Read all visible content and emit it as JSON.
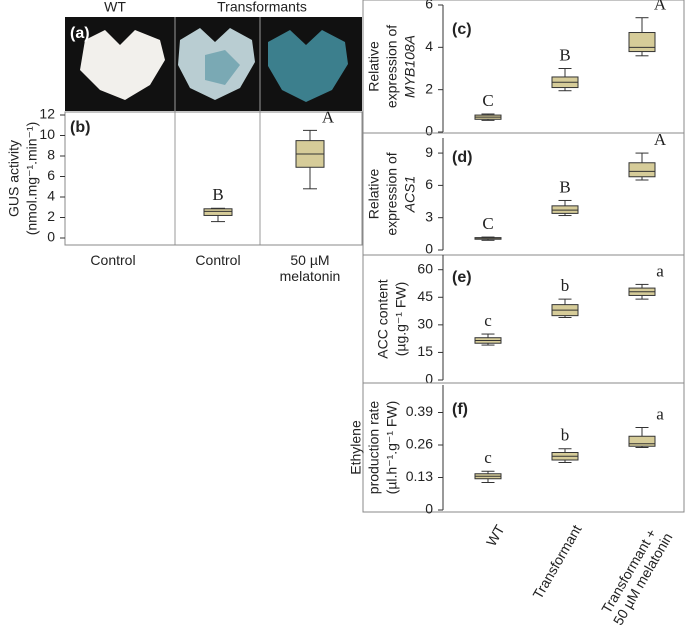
{
  "panel_a": {
    "label": "(a)",
    "headers": [
      "WT",
      "Transformants"
    ]
  },
  "chart_data": [
    {
      "type": "box",
      "label": "(b)",
      "ylabel": [
        "GUS activity",
        "(nmol.mg⁻¹.min⁻¹)"
      ],
      "categories": [
        "Control",
        "Control",
        "50 µM\nmelatonin"
      ],
      "boxes": [
        null,
        {
          "min": 1.6,
          "q1": 2.2,
          "median": 2.6,
          "q3": 2.85,
          "max": 2.9
        },
        {
          "min": 4.8,
          "q1": 6.9,
          "median": 8.2,
          "q3": 9.5,
          "max": 10.5
        }
      ],
      "letters": [
        null,
        "B",
        "A"
      ],
      "color": "#d6cc99",
      "ylim": [
        0,
        12
      ],
      "yticks": [
        0,
        2,
        4,
        6,
        8,
        10,
        12
      ]
    },
    {
      "type": "box",
      "label": "(c)",
      "ylabel": [
        "Relative",
        "expression of"
      ],
      "gene": "MYB108A",
      "boxes": [
        {
          "min": 0.55,
          "q1": 0.6,
          "median": 0.7,
          "q3": 0.8,
          "max": 0.85
        },
        {
          "min": 1.95,
          "q1": 2.1,
          "median": 2.35,
          "q3": 2.6,
          "max": 3.0
        },
        {
          "min": 3.6,
          "q1": 3.8,
          "median": 4.0,
          "q3": 4.7,
          "max": 5.4
        }
      ],
      "letters": [
        "C",
        "B",
        "A"
      ],
      "color": "#d6cc99",
      "ylim": [
        0,
        6
      ],
      "yticks": [
        0,
        2,
        4,
        6
      ]
    },
    {
      "type": "box",
      "label": "(d)",
      "ylabel": [
        "Relative",
        "expression of"
      ],
      "gene": "ACS1",
      "boxes": [
        {
          "min": 0.9,
          "q1": 1.0,
          "median": 1.05,
          "q3": 1.15,
          "max": 1.2
        },
        {
          "min": 3.2,
          "q1": 3.4,
          "median": 3.7,
          "q3": 4.1,
          "max": 4.6
        },
        {
          "min": 6.5,
          "q1": 6.8,
          "median": 7.3,
          "q3": 8.1,
          "max": 9.0
        }
      ],
      "letters": [
        "C",
        "B",
        "A"
      ],
      "color": "#d6cc99",
      "ylim": [
        0,
        10.4
      ],
      "yticks": [
        0,
        3,
        6,
        9
      ]
    },
    {
      "type": "box",
      "label": "(e)",
      "ylabel": [
        "ACC content",
        "(µg.g⁻¹ FW)"
      ],
      "boxes": [
        {
          "min": 19,
          "q1": 20,
          "median": 21.5,
          "q3": 23,
          "max": 25
        },
        {
          "min": 34,
          "q1": 35,
          "median": 38,
          "q3": 41,
          "max": 44
        },
        {
          "min": 44,
          "q1": 46,
          "median": 48,
          "q3": 50,
          "max": 52
        }
      ],
      "letters": [
        "c",
        "b",
        "a"
      ],
      "color": "#d6cc99",
      "ylim": [
        0,
        68
      ],
      "yticks": [
        0,
        15,
        30,
        45,
        60
      ]
    },
    {
      "type": "box",
      "label": "(f)",
      "ylabel": [
        "Ethylene",
        "production rate",
        "(µl.h⁻¹.g⁻¹ FW)"
      ],
      "categories": [
        "WT",
        "Transformant",
        "Transformant +\n50 µM melatonin"
      ],
      "boxes": [
        {
          "min": 0.11,
          "q1": 0.125,
          "median": 0.135,
          "q3": 0.145,
          "max": 0.155
        },
        {
          "min": 0.19,
          "q1": 0.2,
          "median": 0.215,
          "q3": 0.23,
          "max": 0.245
        },
        {
          "min": 0.25,
          "q1": 0.255,
          "median": 0.265,
          "q3": 0.295,
          "max": 0.33
        }
      ],
      "letters": [
        "c",
        "b",
        "a"
      ],
      "color": "#d6cc99",
      "ylim": [
        0,
        0.5
      ],
      "yticks": [
        0,
        0.13,
        0.26,
        0.39
      ]
    }
  ]
}
